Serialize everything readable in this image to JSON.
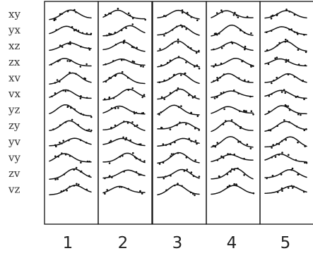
{
  "row_labels": [
    "xy",
    "yx",
    "xz",
    "zx",
    "xv",
    "vx",
    "yz",
    "zy",
    "yv",
    "vy",
    "zv",
    "vz"
  ],
  "column_labels": [
    "1",
    "2",
    "3",
    "4",
    "5"
  ]
}
